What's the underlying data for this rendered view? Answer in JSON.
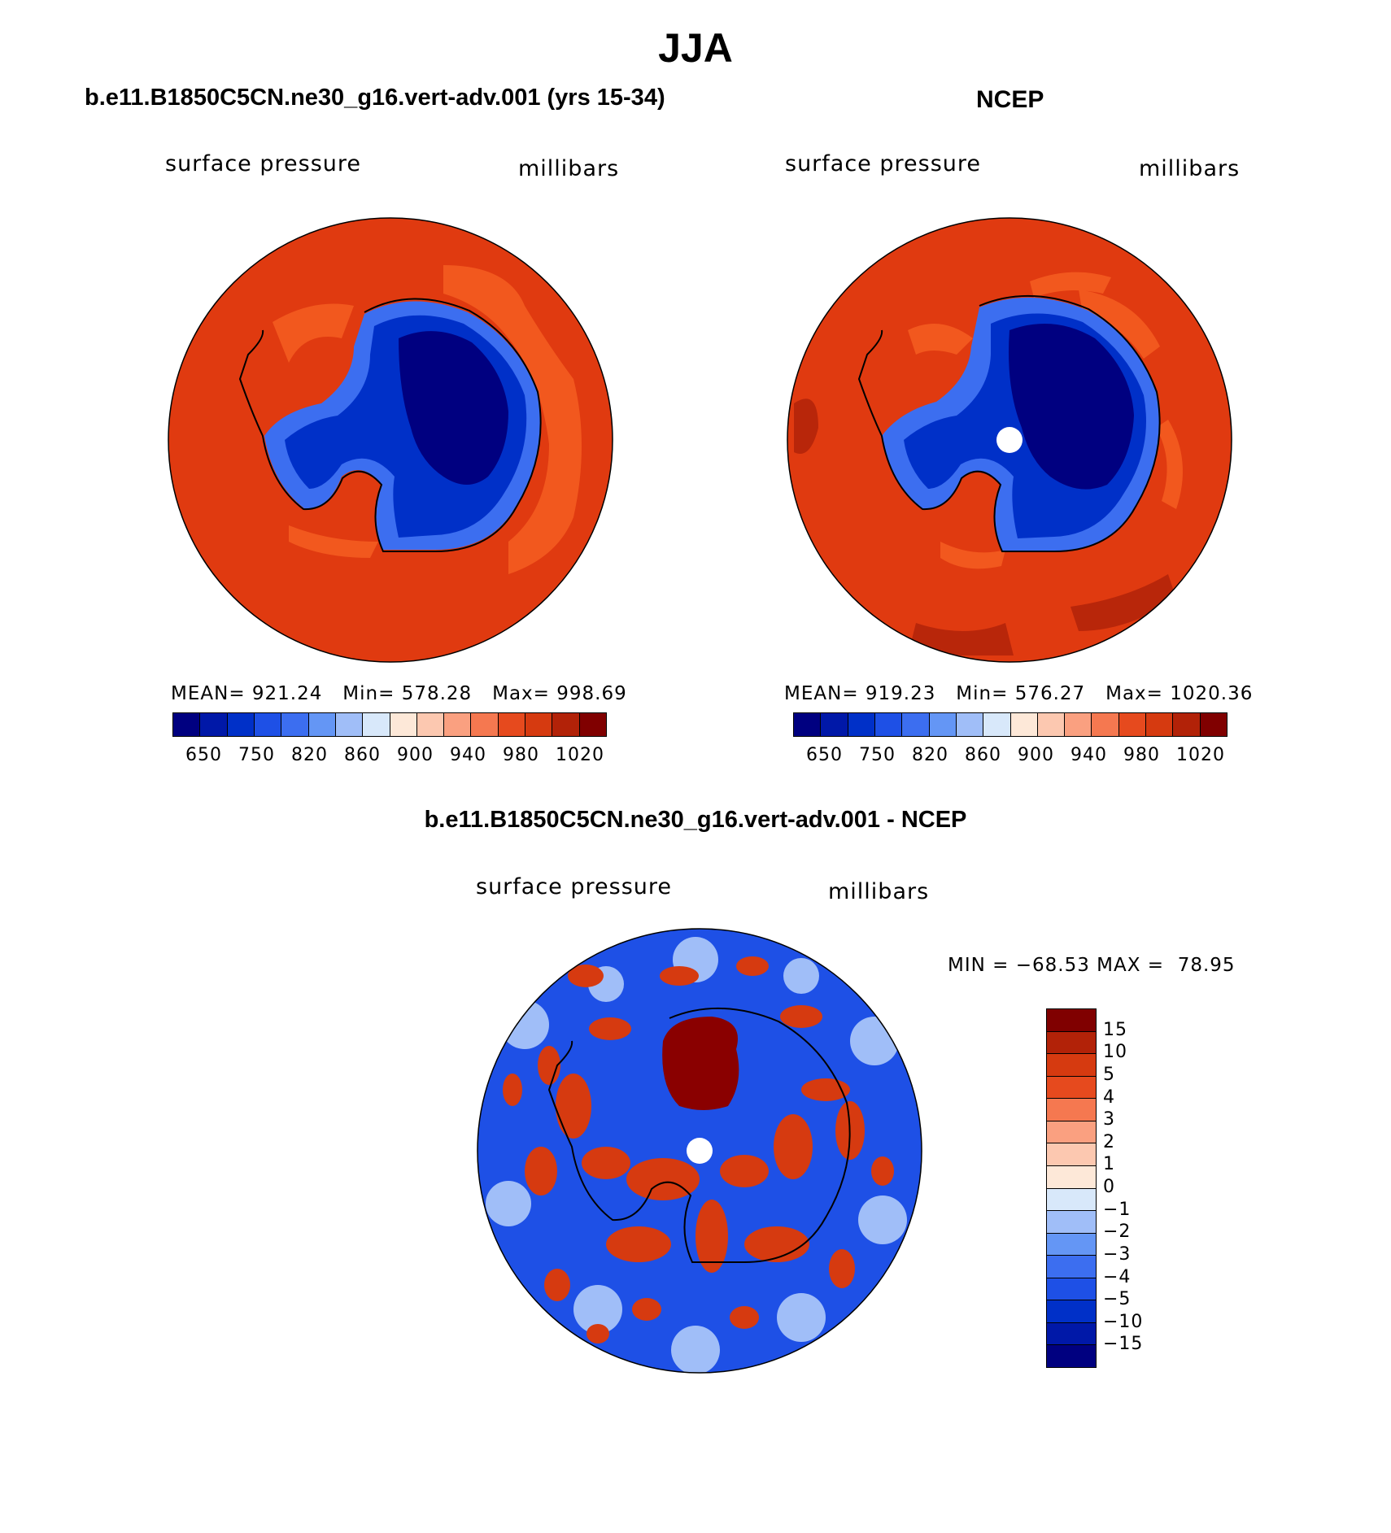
{
  "figure": {
    "season": "JJA",
    "panels": [
      {
        "title": "b.e11.B1850C5CN.ne30_g16.vert-adv.001 (yrs 15-34)",
        "variable": "surface pressure",
        "units": "millibars",
        "stats": "MEAN= 921.24   Min= 578.28   Max= 998.69",
        "has_pole_hole": false
      },
      {
        "title": "NCEP",
        "variable": "surface pressure",
        "units": "millibars",
        "stats": "MEAN= 919.23   Min= 576.27   Max= 1020.36",
        "has_pole_hole": true
      },
      {
        "title": "b.e11.B1850C5CN.ne30_g16.vert-adv.001 - NCEP",
        "variable": "surface pressure",
        "units": "millibars",
        "stats": "MIN = −68.53 MAX =  78.95",
        "has_pole_hole": true
      }
    ],
    "colorbar_abs": {
      "colors": [
        "#000080",
        "#0018a8",
        "#0030c8",
        "#1e50e6",
        "#3c6ef0",
        "#6496f5",
        "#a0bef8",
        "#d8e8fa",
        "#fde8d8",
        "#fcc8b0",
        "#faa080",
        "#f57850",
        "#e64a1e",
        "#d63a10",
        "#b22208",
        "#800000"
      ],
      "labels": [
        "650",
        "750",
        "820",
        "860",
        "900",
        "940",
        "980",
        "1020"
      ]
    },
    "colorbar_diff": {
      "colors": [
        "#800000",
        "#b22208",
        "#d63a10",
        "#e64a1e",
        "#f57850",
        "#faa080",
        "#fcc8b0",
        "#fde8d8",
        "#d8e8fa",
        "#a0bef8",
        "#6496f5",
        "#3c6ef0",
        "#1e50e6",
        "#0030c8",
        "#0018a8",
        "#000080"
      ],
      "labels": [
        "15",
        "10",
        "5",
        "4",
        "3",
        "2",
        "1",
        "0",
        "−1",
        "−2",
        "−3",
        "−4",
        "−5",
        "−10",
        "−15"
      ]
    },
    "colors": {
      "ocean_abs": "#e03a10",
      "ocean_abs_light": "#f2581e",
      "ice_dark": "#000080",
      "ice_mid": "#0030c8",
      "ice_light": "#3c6ef0",
      "diff_bg": "#1e50e6",
      "diff_red": "#d63a10",
      "diff_darkred": "#8a0000",
      "coast": "#000000"
    }
  }
}
